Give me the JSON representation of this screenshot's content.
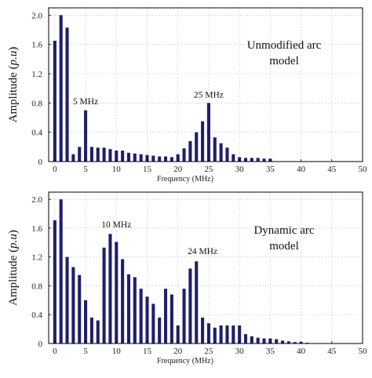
{
  "chart_data": [
    {
      "type": "bar",
      "xlabel": "Frequency (MHz)",
      "ylabel": "Amplitude (p.u)",
      "ylabel_parts": {
        "main": "Amplitude (",
        "italic": "p.u",
        "close": ")"
      },
      "xlim": [
        -1,
        50
      ],
      "ylim": [
        0,
        2.1
      ],
      "xticks": [
        0,
        5,
        10,
        15,
        20,
        25,
        30,
        35,
        40,
        45,
        50
      ],
      "yticks": [
        0,
        0.4,
        0.8,
        1.2,
        1.6,
        2.0
      ],
      "ytick_labels": [
        "0",
        "0.4",
        "0.8",
        "1.2",
        "1.6",
        "2.0"
      ],
      "grid": true,
      "bar_color": "#1f1f6b",
      "legend_text": [
        "Unmodified arc",
        "model"
      ],
      "annotations": [
        {
          "text": "5 MHz",
          "x": 5,
          "y": 0.75
        },
        {
          "text": "25 MHz",
          "x": 25,
          "y": 0.84
        }
      ],
      "x": [
        0,
        1,
        2,
        3,
        4,
        5,
        6,
        7,
        8,
        9,
        10,
        11,
        12,
        13,
        14,
        15,
        16,
        17,
        18,
        19,
        20,
        21,
        22,
        23,
        24,
        25,
        26,
        27,
        28,
        29,
        30,
        31,
        32,
        33,
        34,
        35
      ],
      "values": [
        1.65,
        2.0,
        1.83,
        0.1,
        0.2,
        0.7,
        0.2,
        0.19,
        0.19,
        0.17,
        0.15,
        0.15,
        0.12,
        0.11,
        0.1,
        0.09,
        0.08,
        0.07,
        0.07,
        0.06,
        0.1,
        0.18,
        0.28,
        0.4,
        0.55,
        0.8,
        0.33,
        0.25,
        0.19,
        0.1,
        0.06,
        0.05,
        0.05,
        0.05,
        0.04,
        0.04
      ]
    },
    {
      "type": "bar",
      "xlabel": "Frequency (MHz)",
      "ylabel": "Amplitude (p.u)",
      "ylabel_parts": {
        "main": "Amplitude (",
        "italic": "p.u",
        "close": ")"
      },
      "xlim": [
        -1,
        50
      ],
      "ylim": [
        0,
        2.1
      ],
      "xticks": [
        0,
        5,
        10,
        15,
        20,
        25,
        30,
        35,
        40,
        45,
        50
      ],
      "yticks": [
        0,
        0.4,
        0.8,
        1.2,
        1.6,
        2.0
      ],
      "ytick_labels": [
        "0",
        "0.4",
        "0.8",
        "1.2",
        "1.6",
        "2.0"
      ],
      "grid": true,
      "bar_color": "#1f1f6b",
      "legend_text": [
        "Dynamic arc",
        "model"
      ],
      "annotations": [
        {
          "text": "10 MHz",
          "x": 10,
          "y": 1.58
        },
        {
          "text": "24 MHz",
          "x": 24,
          "y": 1.21
        }
      ],
      "x": [
        0,
        1,
        2,
        3,
        4,
        5,
        6,
        7,
        8,
        9,
        10,
        11,
        12,
        13,
        14,
        15,
        16,
        17,
        18,
        19,
        20,
        21,
        22,
        23,
        24,
        25,
        26,
        27,
        28,
        29,
        30,
        31,
        32,
        33,
        34,
        35,
        36,
        37,
        38,
        39,
        40,
        41
      ],
      "values": [
        1.71,
        2.0,
        1.2,
        1.06,
        0.95,
        0.6,
        0.36,
        0.32,
        1.33,
        1.52,
        1.41,
        1.17,
        0.96,
        0.92,
        0.76,
        0.65,
        0.55,
        0.36,
        0.76,
        0.68,
        0.25,
        0.76,
        1.04,
        1.14,
        0.36,
        0.28,
        0.22,
        0.25,
        0.25,
        0.25,
        0.25,
        0.13,
        0.1,
        0.08,
        0.07,
        0.07,
        0.06,
        0.04,
        0.03,
        0.02,
        0.02,
        0.01
      ]
    }
  ]
}
